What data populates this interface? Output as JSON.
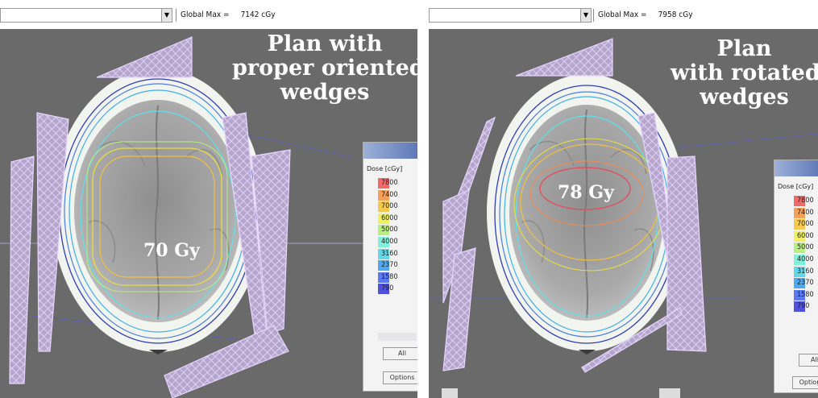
{
  "panels": [
    {
      "global_max_label": "Global Max =",
      "global_max_value": "7142 cGy",
      "caption_lines": [
        "Plan with",
        "proper oriented",
        "wedges"
      ],
      "dose_label": "70 Gy",
      "legend": {
        "title": "Dose [cGy]",
        "values": [
          "7800",
          "7400",
          "7000",
          "6000",
          "5000",
          "4000",
          "3160",
          "2370",
          "1580",
          "790"
        ],
        "button_all": "All",
        "button_options": "Options"
      }
    },
    {
      "global_max_label": "Global Max =",
      "global_max_value": "7958 cGy",
      "caption_lines": [
        "Plan",
        "with rotated",
        "wedges"
      ],
      "dose_label": "78 Gy",
      "legend": {
        "title": "Dose [cGy]",
        "values": [
          "7800",
          "7400",
          "7000",
          "6000",
          "5000",
          "4000",
          "3160",
          "2370",
          "1580",
          "790"
        ],
        "button_all": "All",
        "button_options": "Options"
      }
    }
  ],
  "colors": {
    "background": "#6a6a6a",
    "skin": "#f4f6f2",
    "wedge_fill": "#b9a9cf",
    "wedge_stroke": "#e6d6ff",
    "legend_swatches": [
      "#f06a6a",
      "#f5a05a",
      "#f5c850",
      "#f0f060",
      "#b8f080",
      "#80f0d8",
      "#60d8e8",
      "#50a8f0",
      "#5a78f0",
      "#5050d8"
    ]
  },
  "icons": {
    "dropdown": "chevron-down-icon"
  }
}
